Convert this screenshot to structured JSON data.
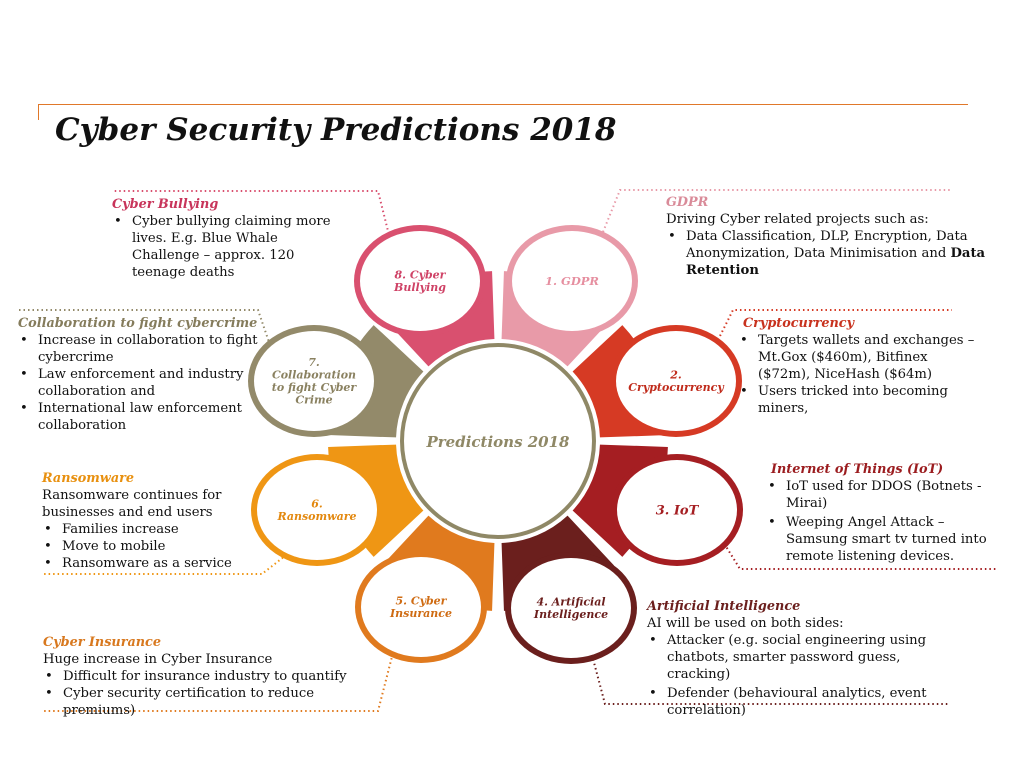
{
  "title": "Cyber Security Predictions 2018",
  "center_label": "Predictions 2018",
  "colors": {
    "accent_line": "#e0782a",
    "gdpr": "#e89aa8",
    "crypto": "#d63a24",
    "iot": "#a51e22",
    "ai": "#6b1f1d",
    "insurance": "#e07a1e",
    "ransomware": "#ef9614",
    "collaboration": "#938a6a",
    "bullying": "#d9506f"
  },
  "segments": [
    {
      "id": "gdpr",
      "label": "1. GDPR"
    },
    {
      "id": "crypto",
      "label": "2. Cryptocurrency"
    },
    {
      "id": "iot",
      "label": "3. IoT"
    },
    {
      "id": "ai",
      "label": "4. Artificial Intelligence"
    },
    {
      "id": "insurance",
      "label": "5. Cyber Insurance"
    },
    {
      "id": "ransomware",
      "label": "6. Ransomware"
    },
    {
      "id": "collaboration",
      "label": "7. Collaboration to fight Cyber Crime"
    },
    {
      "id": "bullying",
      "label": "8. Cyber Bullying"
    }
  ],
  "blocks": {
    "bullying": {
      "heading": "Cyber Bullying",
      "bullets": [
        "Cyber bullying claiming more lives. E.g. Blue Whale Challenge – approx. 120 teenage deaths"
      ]
    },
    "gdpr": {
      "heading": "GDPR",
      "lead": "Driving Cyber related projects such as:",
      "bullet_text": " Data Classification, DLP, Encryption, Data Anonymization, Data Minimisation and ",
      "bullet_bold": "Data Retention"
    },
    "collaboration": {
      "heading": "Collaboration to fight cybercrime",
      "bullets": [
        "Increase in collaboration to fight cybercrime",
        "Law enforcement and industry collaboration and",
        "International law enforcement collaboration"
      ]
    },
    "crypto": {
      "heading": "Cryptocurrency",
      "bullets": [
        "Targets wallets and exchanges – Mt.Gox ($460m), Bitfinex ($72m), NiceHash ($64m)",
        "Users tricked into becoming miners,"
      ]
    },
    "ransomware": {
      "heading": "Ransomware",
      "lead": "Ransomware continues for businesses and end users",
      "bullets": [
        "Families increase",
        "Move to mobile",
        "Ransomware as a service"
      ]
    },
    "iot": {
      "heading": "Internet of Things (IoT)",
      "bullets": [
        "IoT used for DDOS (Botnets - Mirai)",
        "Weeping Angel Attack – Samsung smart tv turned into remote listening devices."
      ]
    },
    "insurance": {
      "heading": "Cyber Insurance",
      "lead": "Huge increase in Cyber Insurance",
      "bullets": [
        "Difficult for insurance industry to quantify",
        "Cyber security certification to reduce premiums)"
      ]
    },
    "ai": {
      "heading": "Artificial Intelligence",
      "lead": "AI will be used on both sides:",
      "bullets": [
        "Attacker  (e.g. social engineering using chatbots, smarter password guess, cracking)",
        "Defender (behavioural analytics, event correlation)"
      ]
    }
  }
}
